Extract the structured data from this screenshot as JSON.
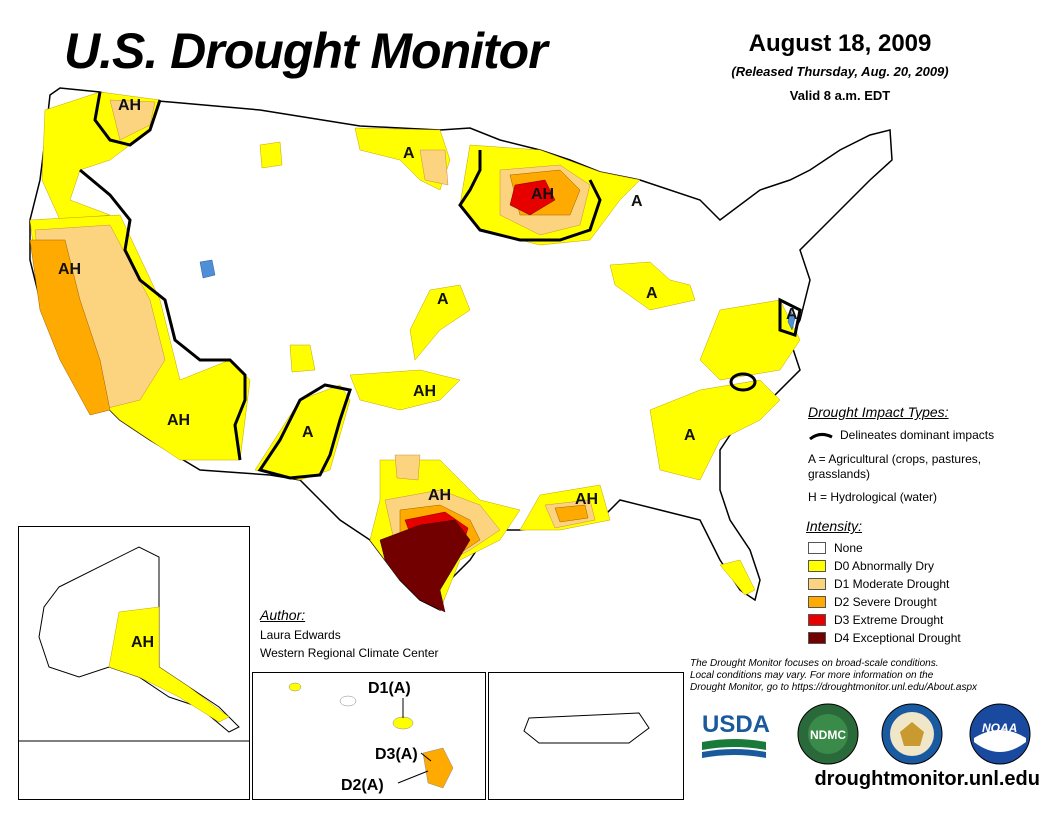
{
  "header": {
    "title": "U.S. Drought Monitor",
    "date": "August 18, 2009",
    "released": "(Released Thursday, Aug. 20, 2009)",
    "valid": "Valid 8 a.m. EDT"
  },
  "colors": {
    "none": "#ffffff",
    "d0": "#ffff00",
    "d1": "#fcd37f",
    "d2": "#ffaa00",
    "d3": "#e60000",
    "d4": "#730000",
    "water": "#4f8fd8",
    "border": "#b0b0b0"
  },
  "map_labels": {
    "ah_northwest": "AH",
    "a_north_dakota": "A",
    "ah_wisconsin": "AH",
    "a_michigan": "A",
    "ah_california": "AH",
    "a_nebraska": "A",
    "a_ohio": "A",
    "a_virginia": "A",
    "ah_arizona": "AH",
    "a_new_mexico": "A",
    "ah_kansas": "AH",
    "a_georgia": "A",
    "ah_texas": "AH",
    "ah_louisiana": "AH",
    "ah_alaska": "AH"
  },
  "hawaii_labels": {
    "d1": "D1(A)",
    "d3": "D3(A)",
    "d2": "D2(A)"
  },
  "impact_types": {
    "title": "Drought Impact Types:",
    "delineates": "Delineates dominant impacts",
    "agricultural": "A = Agricultural (crops, pastures,",
    "agricultural_2": "grasslands)",
    "hydrological": "H = Hydrological (water)"
  },
  "intensity": {
    "title": "Intensity:",
    "items": [
      {
        "label": "None",
        "color": "#ffffff"
      },
      {
        "label": "D0 Abnormally Dry",
        "color": "#ffff00"
      },
      {
        "label": "D1 Moderate Drought",
        "color": "#fcd37f"
      },
      {
        "label": "D2 Severe Drought",
        "color": "#ffaa00"
      },
      {
        "label": "D3 Extreme Drought",
        "color": "#e60000"
      },
      {
        "label": "D4 Exceptional Drought",
        "color": "#730000"
      }
    ]
  },
  "author": {
    "title": "Author:",
    "name": "Laura Edwards",
    "org": "Western Regional Climate Center"
  },
  "footer": {
    "note_1": "The Drought Monitor focuses on broad-scale conditions.",
    "note_2": "Local conditions may vary. For more information on the",
    "note_3": "Drought Monitor, go to https://droughtmonitor.unl.edu/About.aspx",
    "url": "droughtmonitor.unl.edu"
  },
  "logos": {
    "usda": "USDA",
    "ndmc": "NDMC",
    "noaa": "NOAA"
  }
}
